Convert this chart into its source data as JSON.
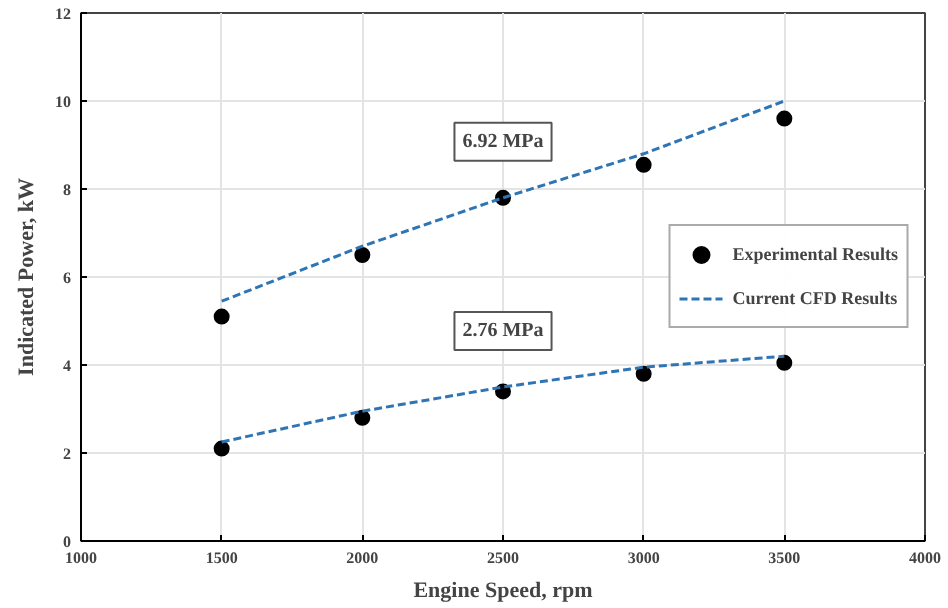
{
  "chart_data": {
    "type": "line",
    "xlabel": "Engine Speed, rpm",
    "ylabel": "Indicated Power, kW",
    "x": [
      1500,
      2000,
      2500,
      3000,
      3500
    ],
    "series": [
      {
        "name": "Experimental Results",
        "type": "scatter",
        "marker": "circle",
        "color": "#000000",
        "values": [
          5.1,
          6.5,
          7.8,
          8.55,
          9.6
        ]
      },
      {
        "name": "Current CFD Results",
        "marker": "none",
        "color": "#2e75b6",
        "values": [
          5.45,
          6.7,
          7.8,
          8.8,
          10.0
        ]
      },
      {
        "type": "scatter",
        "marker": "circle",
        "color": "#000000",
        "values": [
          2.1,
          2.8,
          3.4,
          3.8,
          4.05
        ]
      },
      {
        "marker": "none",
        "color": "#2e75b6",
        "values": [
          2.25,
          2.95,
          3.5,
          3.95,
          4.2
        ]
      }
    ],
    "xlim": [
      1000,
      4000
    ],
    "xticks": [
      1000,
      1500,
      2000,
      2500,
      3000,
      3500,
      4000
    ],
    "ylim": [
      0,
      12
    ],
    "yticks": [
      0,
      2,
      4,
      6,
      8,
      10,
      12
    ],
    "annotations": [
      "6.92 MPa",
      "2.76 MPa"
    ],
    "grid": true,
    "legend": "right",
    "line_style": "dashed"
  }
}
